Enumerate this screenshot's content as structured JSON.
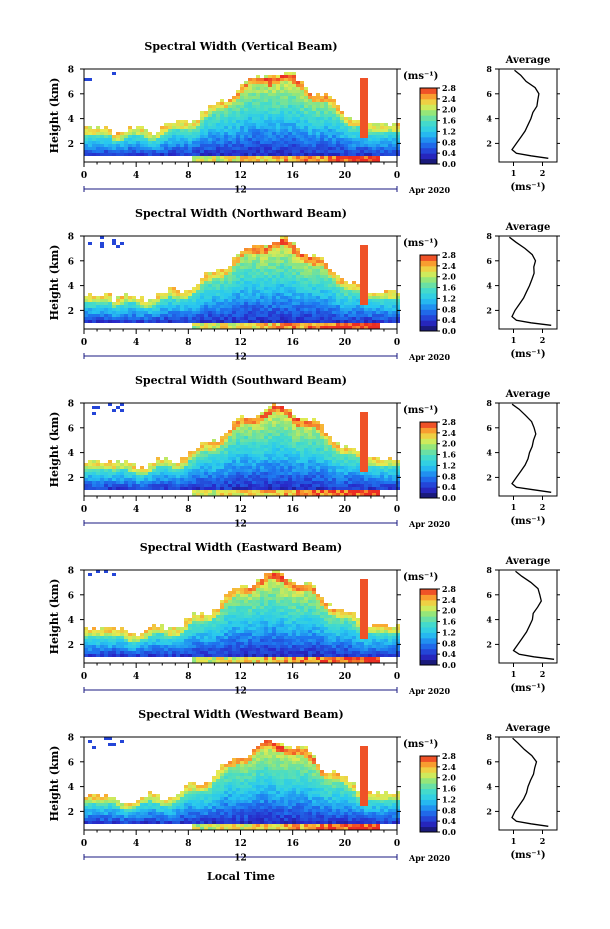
{
  "figure": {
    "xaxis_title": "Local Time",
    "date_label": "Apr 2020",
    "panel_ylabel": "Height (km)",
    "avg_title": "Average",
    "units": "(ms⁻¹)",
    "colorbar_ticks": [
      "0.0",
      "0.4",
      "0.8",
      "1.2",
      "1.6",
      "2.0",
      "2.4",
      "2.8"
    ]
  },
  "chart_data": [
    {
      "type": "heatmap",
      "title": "Spectral Width (Vertical Beam)",
      "xlabel": "",
      "ylabel": "Height (km)",
      "xlim": [
        0,
        24
      ],
      "xticks": [
        "0",
        "4",
        "8",
        "12",
        "16",
        "20",
        "0"
      ],
      "xsub": "12",
      "ylim": [
        0.5,
        8
      ],
      "yticks": [
        "2",
        "4",
        "6",
        "8"
      ],
      "colorbar": {
        "label": "(ms⁻¹)",
        "range": [
          0,
          2.8
        ],
        "ticks": [
          "0.0",
          "0.4",
          "0.8",
          "1.2",
          "1.6",
          "2.0",
          "2.4",
          "2.8"
        ]
      },
      "date": "Apr 2020",
      "average": {
        "title": "Average",
        "xlabel": "(ms⁻¹)",
        "xlim": [
          0.5,
          2.5
        ],
        "xticks": [
          "1",
          "2"
        ],
        "heights": [
          0.8,
          1.0,
          1.2,
          1.5,
          2.0,
          2.5,
          3.0,
          3.5,
          4.0,
          4.5,
          5.0,
          5.5,
          6.0,
          6.5,
          7.0,
          7.5,
          7.9
        ],
        "values": [
          2.2,
          1.6,
          1.1,
          0.95,
          1.1,
          1.25,
          1.4,
          1.5,
          1.6,
          1.65,
          1.8,
          1.85,
          1.9,
          1.7,
          1.45,
          1.2,
          1.0
        ]
      }
    },
    {
      "type": "heatmap",
      "title": "Spectral Width (Northward Beam)",
      "xlabel": "",
      "ylabel": "Height (km)",
      "xlim": [
        0,
        24
      ],
      "xticks": [
        "0",
        "4",
        "8",
        "12",
        "16",
        "20",
        "0"
      ],
      "xsub": "12",
      "ylim": [
        0.5,
        8
      ],
      "yticks": [
        "2",
        "4",
        "6",
        "8"
      ],
      "colorbar": {
        "label": "(ms⁻¹)",
        "range": [
          0,
          2.8
        ],
        "ticks": [
          "0.0",
          "0.4",
          "0.8",
          "1.2",
          "1.6",
          "2.0",
          "2.4",
          "2.8"
        ]
      },
      "date": "Apr 2020",
      "average": {
        "title": "Average",
        "xlabel": "(ms⁻¹)",
        "xlim": [
          0.5,
          2.5
        ],
        "xticks": [
          "1",
          "2"
        ],
        "heights": [
          0.8,
          1.0,
          1.2,
          1.5,
          2.0,
          2.5,
          3.0,
          3.5,
          4.0,
          4.5,
          5.0,
          5.5,
          6.0,
          6.5,
          7.0,
          7.5,
          7.9
        ],
        "values": [
          2.3,
          1.6,
          1.1,
          0.95,
          1.05,
          1.2,
          1.35,
          1.45,
          1.55,
          1.6,
          1.7,
          1.75,
          1.8,
          1.6,
          1.35,
          1.1,
          0.9
        ]
      }
    },
    {
      "type": "heatmap",
      "title": "Spectral Width (Southward Beam)",
      "xlabel": "",
      "ylabel": "Height (km)",
      "xlim": [
        0,
        24
      ],
      "xticks": [
        "0",
        "4",
        "8",
        "12",
        "16",
        "20",
        "0"
      ],
      "xsub": "12",
      "ylim": [
        0.5,
        8
      ],
      "yticks": [
        "2",
        "4",
        "6",
        "8"
      ],
      "colorbar": {
        "label": "(ms⁻¹)",
        "range": [
          0,
          2.8
        ],
        "ticks": [
          "0.0",
          "0.4",
          "0.8",
          "1.2",
          "1.6",
          "2.0",
          "2.4",
          "2.8"
        ]
      },
      "date": "Apr 2020",
      "average": {
        "title": "Average",
        "xlabel": "(ms⁻¹)",
        "xlim": [
          0.5,
          2.5
        ],
        "xticks": [
          "1",
          "2"
        ],
        "heights": [
          0.8,
          1.0,
          1.2,
          1.5,
          2.0,
          2.5,
          3.0,
          3.5,
          4.0,
          4.5,
          5.0,
          5.5,
          6.0,
          6.5,
          7.0,
          7.5,
          7.9
        ],
        "values": [
          2.3,
          1.7,
          1.1,
          0.95,
          1.1,
          1.25,
          1.4,
          1.5,
          1.55,
          1.6,
          1.7,
          1.8,
          1.75,
          1.65,
          1.4,
          1.2,
          1.0
        ]
      }
    },
    {
      "type": "heatmap",
      "title": "Spectral Width (Eastward Beam)",
      "xlabel": "",
      "ylabel": "Height (km)",
      "xlim": [
        0,
        24
      ],
      "xticks": [
        "0",
        "4",
        "8",
        "12",
        "16",
        "20",
        "0"
      ],
      "xsub": "12",
      "ylim": [
        0.5,
        8
      ],
      "yticks": [
        "2",
        "4",
        "6",
        "8"
      ],
      "colorbar": {
        "label": "(ms⁻¹)",
        "range": [
          0,
          2.8
        ],
        "ticks": [
          "0.0",
          "0.4",
          "0.8",
          "1.2",
          "1.6",
          "2.0",
          "2.4",
          "2.8"
        ]
      },
      "date": "Apr 2020",
      "average": {
        "title": "Average",
        "xlabel": "(ms⁻¹)",
        "xlim": [
          0.5,
          2.5
        ],
        "xticks": [
          "1",
          "2"
        ],
        "heights": [
          0.8,
          1.0,
          1.2,
          1.5,
          2.0,
          2.5,
          3.0,
          3.5,
          4.0,
          4.5,
          5.0,
          5.5,
          6.0,
          6.5,
          7.0,
          7.5,
          7.9
        ],
        "values": [
          2.4,
          1.7,
          1.2,
          1.0,
          1.15,
          1.3,
          1.45,
          1.55,
          1.65,
          1.7,
          1.85,
          1.9,
          1.95,
          1.8,
          1.55,
          1.3,
          1.1
        ]
      }
    },
    {
      "type": "heatmap",
      "title": "Spectral Width (Westward Beam)",
      "xlabel": "Local Time",
      "ylabel": "Height (km)",
      "xlim": [
        0,
        24
      ],
      "xticks": [
        "0",
        "4",
        "8",
        "12",
        "16",
        "20",
        "0"
      ],
      "xsub": "12",
      "ylim": [
        0.5,
        8
      ],
      "yticks": [
        "2",
        "4",
        "6",
        "8"
      ],
      "colorbar": {
        "label": "(ms⁻¹)",
        "range": [
          0,
          2.8
        ],
        "ticks": [
          "0.0",
          "0.4",
          "0.8",
          "1.2",
          "1.6",
          "2.0",
          "2.4",
          "2.8"
        ]
      },
      "date": "Apr 2020",
      "average": {
        "title": "Average",
        "xlabel": "(ms⁻¹)",
        "xlim": [
          0.5,
          2.5
        ],
        "xticks": [
          "1",
          "2"
        ],
        "heights": [
          0.8,
          1.0,
          1.2,
          1.5,
          2.0,
          2.5,
          3.0,
          3.5,
          4.0,
          4.5,
          5.0,
          5.5,
          6.0,
          6.5,
          7.0,
          7.5,
          7.9
        ],
        "values": [
          2.2,
          1.6,
          1.1,
          0.95,
          1.05,
          1.2,
          1.35,
          1.45,
          1.5,
          1.55,
          1.7,
          1.75,
          1.85,
          1.6,
          1.35,
          1.15,
          0.95
        ]
      }
    }
  ]
}
